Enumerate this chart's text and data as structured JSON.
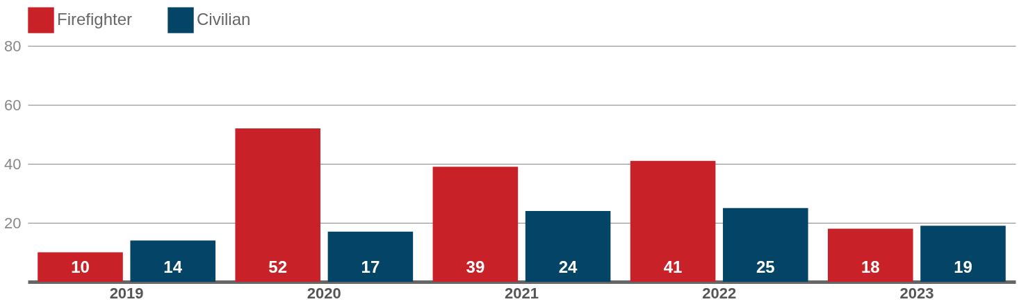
{
  "chart_data": {
    "type": "bar",
    "categories": [
      "2019",
      "2020",
      "2021",
      "2022",
      "2023"
    ],
    "series": [
      {
        "name": "Firefighter",
        "color": "#c82128",
        "values": [
          10,
          52,
          39,
          41,
          18
        ]
      },
      {
        "name": "Civilian",
        "color": "#044567",
        "values": [
          14,
          17,
          24,
          25,
          19
        ]
      }
    ],
    "ylim": [
      0,
      80
    ],
    "yticks": [
      20,
      40,
      60,
      80
    ],
    "grid": "y",
    "legend": "top",
    "data_labels": true
  }
}
